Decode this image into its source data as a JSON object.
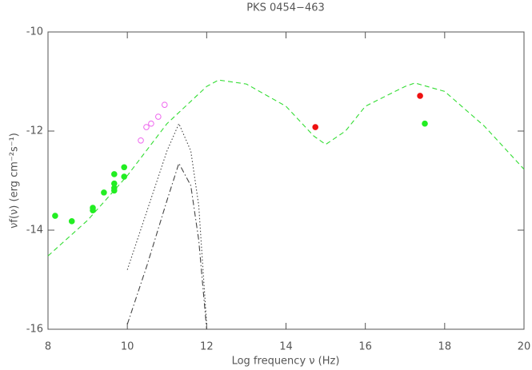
{
  "chart_data": {
    "type": "scatter",
    "title": "PKS 0454−463",
    "xlabel": "Log frequency ν (Hz)",
    "ylabel": "νf(ν) (erg cm⁻²s⁻¹)",
    "xlim": [
      8,
      20
    ],
    "ylim": [
      -16,
      -10
    ],
    "xticks": [
      8,
      10,
      12,
      14,
      16,
      18,
      20
    ],
    "yticks": [
      -16,
      -14,
      -12,
      -10
    ],
    "series": [
      {
        "kind": "line",
        "style": "dashed",
        "color": "#33dd33",
        "x": [
          8,
          9,
          10,
          11,
          12,
          12.3,
          13,
          14,
          14.7,
          15,
          15.5,
          16,
          17,
          17.25,
          18,
          19,
          20
        ],
        "values": [
          -14.52,
          -13.8,
          -12.9,
          -11.85,
          -11.1,
          -10.97,
          -11.05,
          -11.5,
          -12.1,
          -12.27,
          -12.0,
          -11.5,
          -11.1,
          -11.03,
          -11.2,
          -11.9,
          -12.77
        ]
      },
      {
        "kind": "line",
        "style": "dotted",
        "color": "#444444",
        "x": [
          10,
          10.5,
          11,
          11.3,
          11.6,
          11.8,
          12
        ],
        "values": [
          -14.8,
          -13.6,
          -12.4,
          -11.85,
          -12.4,
          -13.5,
          -15.9
        ]
      },
      {
        "kind": "line",
        "style": "dashdot",
        "color": "#444444",
        "x": [
          10,
          10.5,
          11,
          11.3,
          11.6,
          11.8,
          12
        ],
        "values": [
          -15.9,
          -14.7,
          -13.4,
          -12.65,
          -13.1,
          -14.2,
          -16.0
        ]
      },
      {
        "kind": "points",
        "marker": "filled",
        "color": "#22ee22",
        "x": [
          8.18,
          8.6,
          9.13,
          9.13,
          9.41,
          9.67,
          9.67,
          9.67,
          9.67,
          9.92,
          9.92,
          17.5
        ],
        "values": [
          -13.71,
          -13.82,
          -13.55,
          -13.6,
          -13.24,
          -12.87,
          -13.06,
          -13.15,
          -13.2,
          -12.92,
          -12.73,
          -11.85
        ]
      },
      {
        "kind": "points",
        "marker": "filled",
        "color": "#ee1111",
        "x": [
          14.74,
          17.38
        ],
        "values": [
          -11.92,
          -11.29
        ]
      },
      {
        "kind": "points",
        "marker": "open",
        "color": "#ee66ee",
        "x": [
          10.34,
          10.48,
          10.6,
          10.78,
          10.94
        ],
        "values": [
          -12.19,
          -11.92,
          -11.85,
          -11.71,
          -11.47
        ]
      }
    ]
  }
}
